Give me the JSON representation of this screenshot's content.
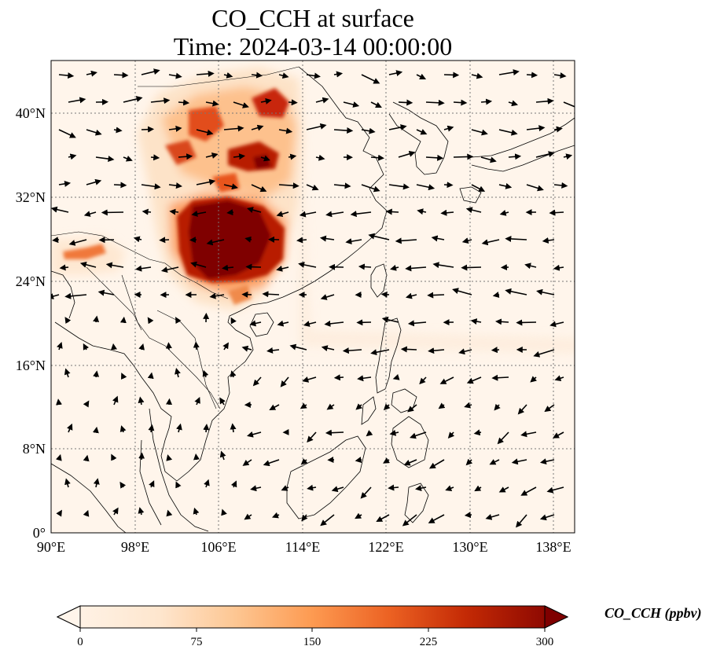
{
  "map": {
    "title_line1": "CO_CCH at surface",
    "title_line2": "Time: 2024-03-14 00:00:00",
    "lon_ticks": [
      "90°E",
      "98°E",
      "106°E",
      "114°E",
      "122°E",
      "130°E",
      "138°E"
    ],
    "lat_ticks": [
      "0°",
      "8°N",
      "16°N",
      "24°N",
      "32°N",
      "40°N"
    ],
    "extent": {
      "lon_min": 90,
      "lon_max": 140,
      "lat_min": 0,
      "lat_max": 45
    },
    "gridlines": "dotted",
    "overlay": "wind vectors",
    "colors": {
      "land_outline": "#000000",
      "background": "#fff5eb"
    }
  },
  "colorbar": {
    "label": "CO_CCH (ppbv)",
    "ticks": [
      "0",
      "75",
      "150",
      "225",
      "300"
    ],
    "min": 0,
    "max": 300,
    "extend": "both",
    "colormap": [
      "#fff5eb",
      "#fdd9b4",
      "#fda762",
      "#e8551b",
      "#b81f03",
      "#7f0000"
    ]
  }
}
